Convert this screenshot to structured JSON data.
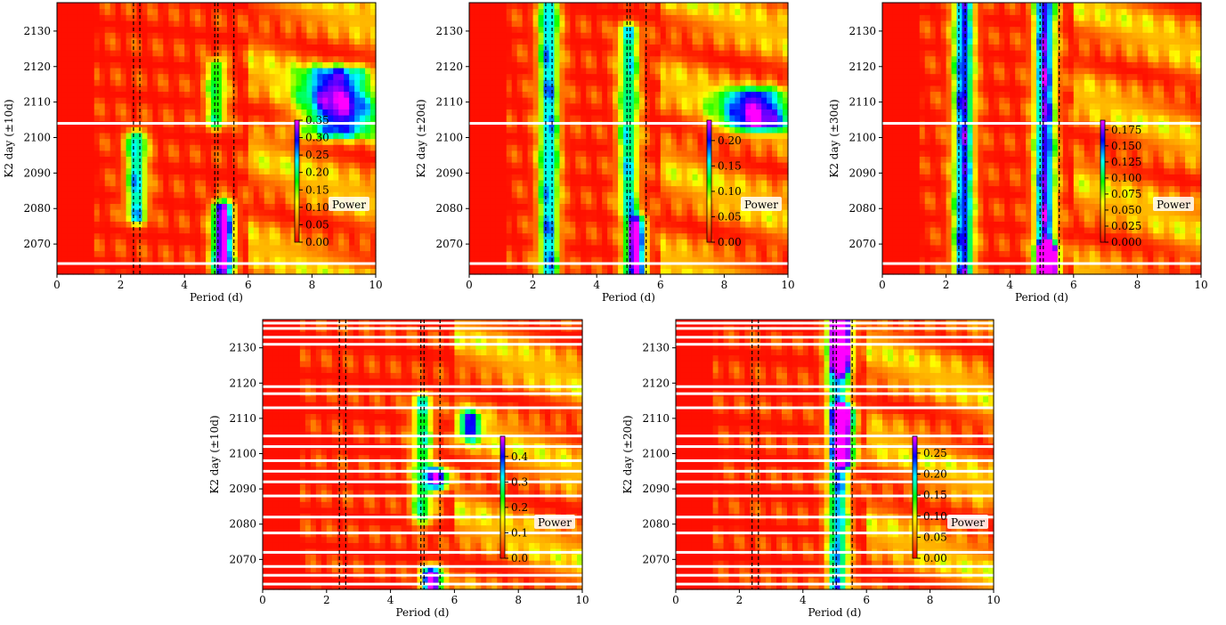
{
  "figure": {
    "colors": {
      "colormap": [
        "#ff0000",
        "#ff8000",
        "#ffff00",
        "#00ff00",
        "#00ffff",
        "#0000ff",
        "#ff00ff"
      ],
      "gap_line": "#ffffff",
      "marker_line": "#000000"
    },
    "marker_periods_d": [
      2.4,
      2.6,
      4.95,
      5.05,
      5.55
    ],
    "period_range_d": [
      0,
      10
    ],
    "day_range": [
      2061.5,
      2138
    ]
  },
  "chart_data": [
    {
      "type": "heatmap",
      "title": "",
      "xlabel": "Period (d)",
      "ylabel": "K2 day (±10d)",
      "xlim": [
        0,
        10
      ],
      "ylim": [
        2061.5,
        2138
      ],
      "xticks": [
        "0",
        "2",
        "4",
        "6",
        "8",
        "10"
      ],
      "yticks": [
        "2070",
        "2080",
        "2090",
        "2100",
        "2110",
        "2120",
        "2130"
      ],
      "colorbar": {
        "label": "Power",
        "range": [
          0,
          0.35
        ],
        "ticks": [
          "0.00",
          "0.05",
          "0.10",
          "0.15",
          "0.20",
          "0.25",
          "0.30",
          "0.35"
        ]
      },
      "gaps_k2_day": [
        2064.5,
        2104
      ],
      "features": [
        {
          "period": 2.5,
          "days": [
            2078,
            2100
          ],
          "power": 0.22
        },
        {
          "period": 5.2,
          "days": [
            2063,
            2080
          ],
          "power": 0.35
        },
        {
          "period": 5.0,
          "days": [
            2105,
            2120
          ],
          "power": 0.17
        },
        {
          "period": 8.8,
          "days": [
            2102,
            2118
          ],
          "power": 0.25
        }
      ]
    },
    {
      "type": "heatmap",
      "title": "",
      "xlabel": "Period (d)",
      "ylabel": "K2 day (±20d)",
      "xlim": [
        0,
        10
      ],
      "ylim": [
        2061.5,
        2138
      ],
      "xticks": [
        "0",
        "2",
        "4",
        "6",
        "8",
        "10"
      ],
      "yticks": [
        "2070",
        "2080",
        "2090",
        "2100",
        "2110",
        "2120",
        "2130"
      ],
      "colorbar": {
        "label": "Power",
        "range": [
          0,
          0.24
        ],
        "ticks": [
          "0.00",
          "0.05",
          "0.10",
          "0.15",
          "0.20"
        ]
      },
      "gaps_k2_day": [
        2064.5,
        2104
      ],
      "features": [
        {
          "period": 2.5,
          "days": [
            2062,
            2138
          ],
          "power": 0.16
        },
        {
          "period": 5.2,
          "days": [
            2063,
            2076
          ],
          "power": 0.24
        },
        {
          "period": 5.0,
          "days": [
            2080,
            2130
          ],
          "power": 0.14
        },
        {
          "period": 9.0,
          "days": [
            2104,
            2112
          ],
          "power": 0.17
        }
      ]
    },
    {
      "type": "heatmap",
      "title": "",
      "xlabel": "Period (d)",
      "ylabel": "K2 day (±30d)",
      "xlim": [
        0,
        10
      ],
      "ylim": [
        2061.5,
        2138
      ],
      "xticks": [
        "0",
        "2",
        "4",
        "6",
        "8",
        "10"
      ],
      "yticks": [
        "2070",
        "2080",
        "2090",
        "2100",
        "2110",
        "2120",
        "2130"
      ],
      "colorbar": {
        "label": "Power",
        "range": [
          0,
          0.19
        ],
        "ticks": [
          "0.000",
          "0.025",
          "0.050",
          "0.075",
          "0.100",
          "0.125",
          "0.150",
          "0.175"
        ]
      },
      "gaps_k2_day": [
        2064.5,
        2104
      ],
      "features": [
        {
          "period": 2.55,
          "days": [
            2062,
            2138
          ],
          "power": 0.15
        },
        {
          "period": 5.1,
          "days": [
            2063,
            2138
          ],
          "power": 0.16
        },
        {
          "period": 5.2,
          "days": [
            2062,
            2068
          ],
          "power": 0.19
        }
      ]
    },
    {
      "type": "heatmap",
      "title": "",
      "xlabel": "Period (d)",
      "ylabel": "K2 day (±10d)",
      "xlim": [
        0,
        10
      ],
      "ylim": [
        2061.5,
        2138
      ],
      "xticks": [
        "0",
        "2",
        "4",
        "6",
        "8",
        "10"
      ],
      "yticks": [
        "2070",
        "2080",
        "2090",
        "2100",
        "2110",
        "2120",
        "2130"
      ],
      "colorbar": {
        "label": "Power",
        "range": [
          0,
          0.48
        ],
        "ticks": [
          "0.0",
          "0.1",
          "0.2",
          "0.3",
          "0.4"
        ]
      },
      "gaps_k2_day": [
        2063,
        2065.5,
        2068,
        2072,
        2077.5,
        2082,
        2088,
        2092,
        2095,
        2098,
        2102,
        2105,
        2113,
        2117,
        2119,
        2131,
        2133,
        2135.5,
        2137
      ],
      "features": [
        {
          "period": 5.3,
          "days": [
            2062,
            2066
          ],
          "power": 0.48
        },
        {
          "period": 5.0,
          "days": [
            2082,
            2115
          ],
          "power": 0.25
        },
        {
          "period": 6.5,
          "days": [
            2106,
            2110
          ],
          "power": 0.3
        },
        {
          "period": 5.5,
          "days": [
            2092,
            2094
          ],
          "power": 0.4
        }
      ]
    },
    {
      "type": "heatmap",
      "title": "",
      "xlabel": "Period (d)",
      "ylabel": "K2 day (±20d)",
      "xlim": [
        0,
        10
      ],
      "ylim": [
        2061.5,
        2138
      ],
      "xticks": [
        "0",
        "2",
        "4",
        "6",
        "8",
        "10"
      ],
      "yticks": [
        "2070",
        "2080",
        "2090",
        "2100",
        "2110",
        "2120",
        "2130"
      ],
      "colorbar": {
        "label": "Power",
        "range": [
          0,
          0.29
        ],
        "ticks": [
          "0.00",
          "0.05",
          "0.10",
          "0.15",
          "0.20",
          "0.25"
        ]
      },
      "gaps_k2_day": [
        2063,
        2065.5,
        2068,
        2072,
        2077.5,
        2082,
        2088,
        2092,
        2095,
        2098,
        2102,
        2105,
        2113,
        2117,
        2119,
        2131,
        2133,
        2135.5,
        2137
      ],
      "features": [
        {
          "period": 5.1,
          "days": [
            2062,
            2138
          ],
          "power": 0.2
        },
        {
          "period": 5.2,
          "days": [
            2125,
            2138
          ],
          "power": 0.28
        },
        {
          "period": 5.3,
          "days": [
            2098,
            2112
          ],
          "power": 0.22
        }
      ]
    }
  ]
}
